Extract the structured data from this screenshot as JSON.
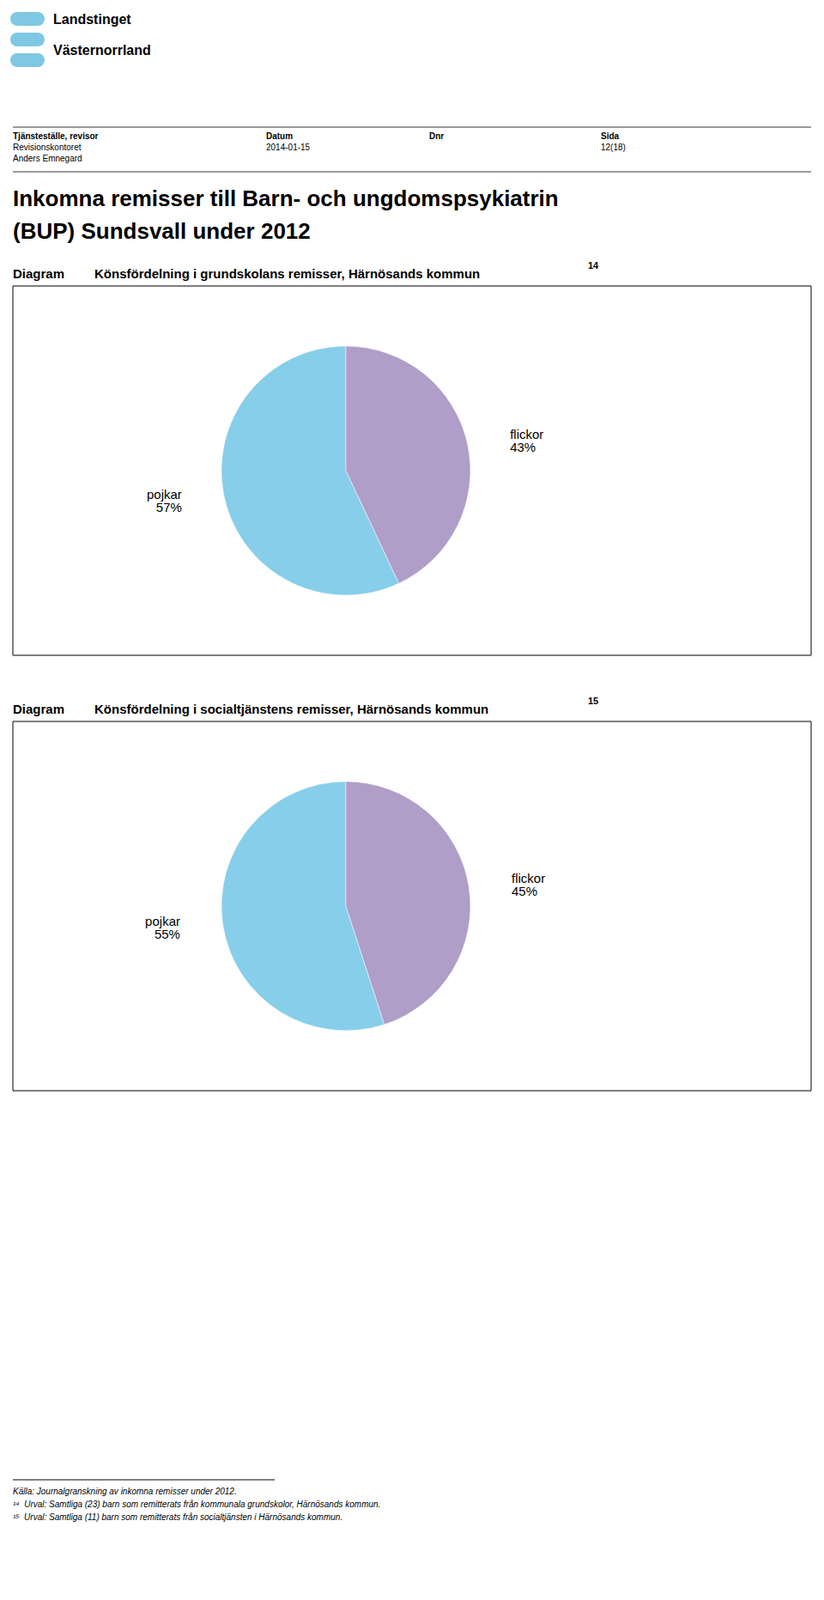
{
  "annotations": [
    "Landstinget",
    "Västernorrland",
    "Tjänsteställe, revisor",
    "Revisionskontoret",
    "Anders Emnegard",
    "Datum",
    "2014-01-15",
    "Dnr",
    "Sida",
    "12(18)",
    "Inkomna remisser till Barn- och ungdomspsykiatrin",
    "(BUP) Sundsvall under 2012",
    "Källa: Journalgranskning av inkomna remisser under 2012.",
    "¹⁴  Urval: Samtliga (23) barn som remitterats från kommunala grundskolor, Härnösands kommun.",
    "¹⁵  Urval: Samtliga (11) barn som remitterats från socialtjänsten i Härnösands kommun."
  ],
  "chart_data": [
    {
      "type": "pie",
      "title": "Könsfördelning i grundskolans remisser, Härnösands kommun",
      "annotations": [
        "Diagram",
        "14"
      ],
      "categories": [
        "pojkar",
        "flickor"
      ],
      "values": [
        57,
        43
      ],
      "value_labels": [
        "57%",
        "43%"
      ],
      "colors": [
        "#87CEEB",
        "#B09DC8"
      ],
      "data_labels": true,
      "legend": false
    },
    {
      "type": "pie",
      "title": "Könsfördelning i socialtjänstens remisser, Härnösands kommun",
      "annotations": [
        "Diagram",
        "15"
      ],
      "categories": [
        "pojkar",
        "flickor"
      ],
      "values": [
        55,
        45
      ],
      "value_labels": [
        "55%",
        "45%"
      ],
      "colors": [
        "#87CEEB",
        "#B09DC8"
      ],
      "data_labels": true,
      "legend": false
    }
  ]
}
